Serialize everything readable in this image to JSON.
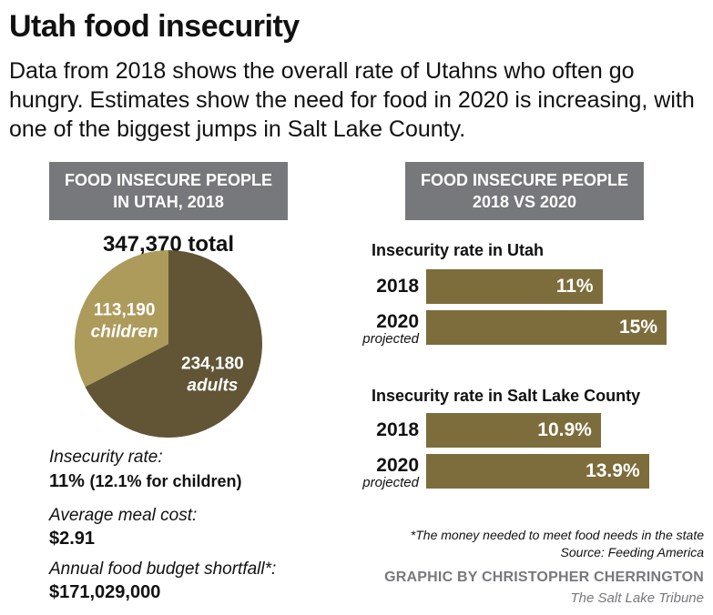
{
  "title": "Utah food insecurity",
  "subtitle": "Data from 2018 shows the overall rate of Utahns who often go hungry. Estimates show the need for food in 2020 is increasing, with one of the biggest jumps in Salt Lake County.",
  "left_panel": {
    "header_line1": "FOOD INSECURE PEOPLE",
    "header_line2": "IN UTAH, 2018",
    "total_label": "347,370 total"
  },
  "right_panel": {
    "header_line1": "FOOD INSECURE PEOPLE",
    "header_line2": "2018 VS 2020"
  },
  "stats": {
    "rate_label": "Insecurity rate:",
    "rate_value": "11%",
    "rate_children": "(12.1% for children)",
    "meal_label": "Average meal cost:",
    "meal_value": "$2.91",
    "shortfall_label": "Annual food budget shortfall*:",
    "shortfall_value": "$171,029,000"
  },
  "projected_note": "projected",
  "footnote": "*The money needed to meet food needs in the state",
  "source": "Source: Feeding America",
  "credit": "GRAPHIC BY CHRISTOPHER CHERRINGTON",
  "publisher": "The Salt Lake Tribune",
  "colors": {
    "children": "#ad9b5c",
    "adults": "#615535",
    "bar": "#7d6d3c",
    "header_bg": "#77787b"
  },
  "chart_data": [
    {
      "type": "pie",
      "title": "FOOD INSECURE PEOPLE IN UTAH, 2018",
      "total": 347370,
      "slices": [
        {
          "name": "children",
          "value": 113190,
          "value_label": "113,190",
          "color": "#ad9b5c"
        },
        {
          "name": "adults",
          "value": 234180,
          "value_label": "234,180",
          "color": "#615535"
        }
      ]
    },
    {
      "type": "bar",
      "title": "Insecurity rate in Utah",
      "categories": [
        "2018",
        "2020"
      ],
      "values": [
        11,
        15
      ],
      "value_labels": [
        "11%",
        "15%"
      ],
      "projected": [
        false,
        true
      ]
    },
    {
      "type": "bar",
      "title": "Insecurity rate in Salt Lake County",
      "categories": [
        "2018",
        "2020"
      ],
      "values": [
        10.9,
        13.9
      ],
      "value_labels": [
        "10.9%",
        "13.9%"
      ],
      "projected": [
        false,
        true
      ]
    }
  ]
}
